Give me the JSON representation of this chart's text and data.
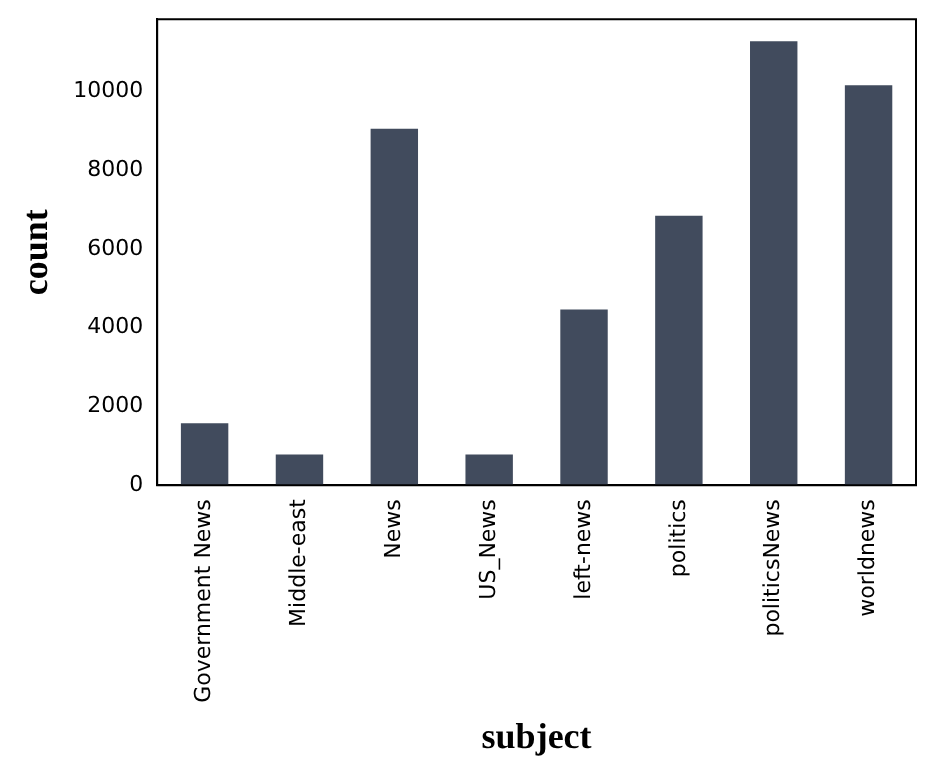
{
  "chart_data": {
    "type": "bar",
    "xlabel": "subject",
    "ylabel": "count",
    "categories": [
      "Government News",
      "Middle-east",
      "News",
      "US_News",
      "left-news",
      "politics",
      "politicsNews",
      "worldnews"
    ],
    "values": [
      1570,
      780,
      9050,
      780,
      4460,
      6840,
      11270,
      10150
    ],
    "color": "#414b5d",
    "ylim": [
      0,
      11830
    ],
    "yticks": [
      0,
      2000,
      4000,
      6000,
      8000,
      10000
    ],
    "grid": false,
    "legend": false
  }
}
